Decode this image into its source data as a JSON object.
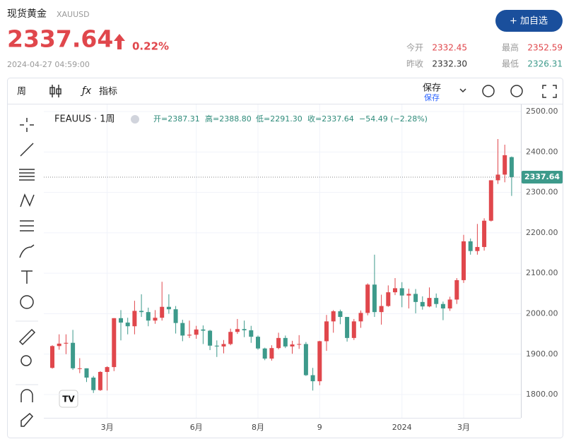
{
  "header": {
    "title": "现货黄金",
    "symbol": "XAUUSD",
    "price": "2337.64",
    "change": "0.22%",
    "datetime": "2024-04-27 04:59:00",
    "button": "+ 加自选",
    "stats": [
      {
        "label": "今开",
        "value": "2332.45"
      },
      {
        "label": "最高",
        "value": "2352.59"
      },
      {
        "label": "昨收",
        "value": "2332.30"
      },
      {
        "label": "最低",
        "value": "2326.31"
      }
    ]
  },
  "toolbar": {
    "interval": "周",
    "indicators": "指标",
    "save": "保存",
    "save_sub": "保存"
  },
  "chart_data": {
    "type": "candlestick",
    "symbol_label": "FEAUUS · 1周",
    "legend": {
      "open": "开=2387.31",
      "high": "高=2388.80",
      "low": "低=2291.30",
      "close": "收=2337.64",
      "change": "−54.49 (−2.28%)"
    },
    "categories": [
      null,
      null,
      null,
      null,
      null,
      null,
      null,
      null,
      "3月",
      null,
      null,
      null,
      null,
      null,
      null,
      null,
      null,
      null,
      null,
      null,
      null,
      "6月",
      null,
      null,
      null,
      null,
      null,
      null,
      null,
      null,
      "8月",
      null,
      null,
      null,
      null,
      null,
      null,
      null,
      null,
      "9",
      null,
      null,
      null,
      null,
      null,
      null,
      null,
      null,
      null,
      null,
      null,
      "2024",
      null,
      null,
      null,
      null,
      null,
      null,
      null,
      null,
      "3月",
      null,
      null,
      null,
      null,
      null,
      null,
      null
    ],
    "open": [
      1866,
      1920,
      1926,
      1928,
      1865,
      1865,
      1842,
      1811,
      1856,
      1868,
      1989,
      1978,
      1969,
      2007,
      2004,
      1983,
      1990,
      2017,
      2011,
      1977,
      1946,
      1948,
      1961,
      1958,
      1921,
      1919,
      1925,
      1955,
      1962,
      1959,
      1943,
      1914,
      1889,
      1915,
      1940,
      1919,
      1924,
      1925,
      1848,
      1833,
      1932,
      1981,
      2006,
      1992,
      1940,
      1981,
      2002,
      2072,
      2004,
      2019,
      2053,
      2063,
      2045,
      2049,
      2029,
      2018,
      2039,
      2024,
      2013,
      2035,
      2083,
      2179,
      2155,
      2165,
      2230,
      2330,
      2344,
      2387.31
    ],
    "high": [
      1922,
      1949,
      1949,
      1960,
      1890,
      1865,
      1846,
      1858,
      1870,
      1989,
      2009,
      1990,
      2032,
      2048,
      2015,
      2009,
      2079,
      2048,
      2019,
      1985,
      1983,
      1970,
      1971,
      1960,
      1934,
      1935,
      1963,
      1987,
      1983,
      1970,
      1946,
      1916,
      1922,
      1953,
      1946,
      1933,
      1947,
      1930,
      1866,
      1933,
      1997,
      2009,
      2010,
      1992,
      1987,
      2008,
      2075,
      2146,
      2047,
      2070,
      2088,
      2078,
      2062,
      2061,
      2043,
      2065,
      2050,
      2030,
      2042,
      2088,
      2195,
      2186,
      2222,
      2236,
      2330,
      2432,
      2418,
      2388.8
    ],
    "low": [
      1864,
      1911,
      1900,
      1861,
      1853,
      1831,
      1804,
      1809,
      1810,
      1858,
      1934,
      1949,
      1949,
      1992,
      1969,
      1975,
      1983,
      2000,
      1951,
      1932,
      1940,
      1938,
      1925,
      1910,
      1893,
      1902,
      1922,
      1950,
      1942,
      1928,
      1911,
      1885,
      1884,
      1912,
      1915,
      1901,
      1913,
      1846,
      1810,
      1823,
      1908,
      1953,
      1974,
      1931,
      1935,
      1965,
      1996,
      1992,
      1973,
      2017,
      2046,
      2016,
      2013,
      2001,
      2010,
      2016,
      2015,
      1984,
      2007,
      2024,
      2076,
      2146,
      2146,
      2156,
      2228,
      2321,
      2325,
      2291.3
    ],
    "close": [
      1920,
      1926,
      1928,
      1865,
      1865,
      1842,
      1811,
      1856,
      1868,
      1989,
      1978,
      1969,
      2007,
      2004,
      1983,
      1990,
      2017,
      2011,
      1977,
      1946,
      1948,
      1961,
      1958,
      1921,
      1919,
      1925,
      1955,
      1962,
      1959,
      1943,
      1914,
      1889,
      1915,
      1940,
      1919,
      1924,
      1925,
      1848,
      1833,
      1932,
      1981,
      2006,
      1992,
      1940,
      1981,
      2002,
      2072,
      2004,
      2019,
      2053,
      2063,
      2045,
      2049,
      2029,
      2018,
      2039,
      2024,
      2013,
      2035,
      2083,
      2179,
      2155,
      2165,
      2230,
      2330,
      2344,
      2392,
      2337.64
    ],
    "up_color": "#e0474c",
    "down_color": "#3d9a8b",
    "ylim": [
      1742.5,
      2517.5
    ],
    "yticks": [
      {
        "value": 1800,
        "label": "1800.00"
      },
      {
        "value": 1900,
        "label": "1900.00"
      },
      {
        "value": 2000,
        "label": "2000.00"
      },
      {
        "value": 2100,
        "label": "2100.00"
      },
      {
        "value": 2200,
        "label": "2200.00"
      },
      {
        "value": 2300,
        "label": "2300.00"
      },
      {
        "value": 2400,
        "label": "2400.00"
      },
      {
        "value": 2500,
        "label": "2500.00"
      }
    ],
    "grid": true
  }
}
